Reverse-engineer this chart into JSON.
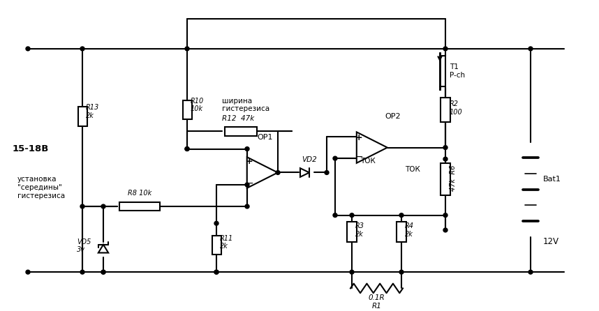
{
  "bg": "#ffffff",
  "lc": "#000000",
  "lw": 1.5,
  "fw": 8.58,
  "fh": 4.46,
  "dpi": 100,
  "labels": {
    "vin": "15-18В",
    "R13": "R13\n2k",
    "R10": "R10\n10k",
    "R12": "R12  47k",
    "R8": "R8 10k",
    "R11": "R11\n2k",
    "R2": "R2\n100",
    "R6": "47k  R6",
    "R3": "R3\n2k",
    "R4": "R4\n2k",
    "R1": "0.1R\nR1",
    "VD5": "VD5\n3v",
    "VD2": "VD2",
    "OP1": "OP1",
    "OP2": "OP2",
    "T1": "T1\nP-ch",
    "Bat1": "Bat1",
    "vout": "12V",
    "hyst_w": "ширина\nгистерезиса",
    "mid_set": "установка\n\"середины\"\nгистерезиса",
    "tok": "ТОК"
  }
}
